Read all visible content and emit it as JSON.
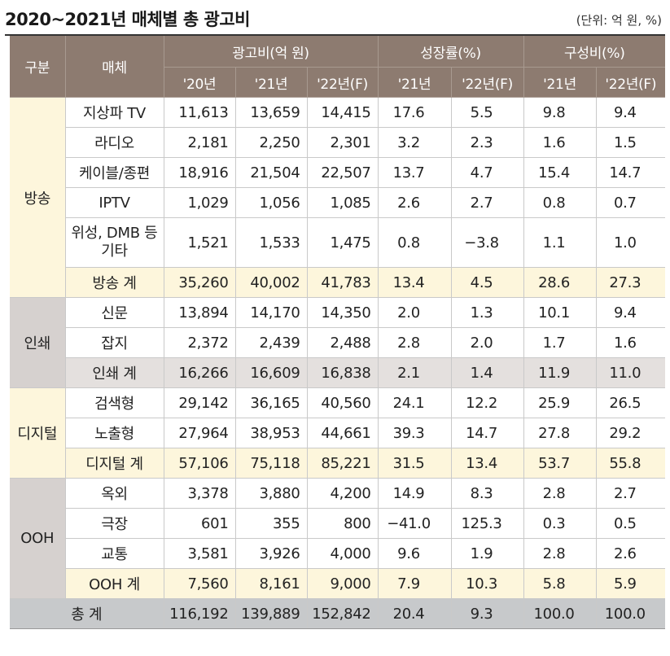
{
  "title": "2020~2021년 매체별 총 광고비",
  "unit": "(단위: 억 원, %)",
  "header": {
    "category": "구분",
    "media": "매체",
    "ad_spend": "광고비(억 원)",
    "growth": "성장률(%)",
    "share": "구성비(%)",
    "y20": "'20년",
    "y21": "'21년",
    "y22f": "'22년(F)",
    "g21": "'21년",
    "g22f": "'22년(F)",
    "s21": "'21년",
    "s22f": "'22년(F)"
  },
  "groups": {
    "broadcast": "방송",
    "print": "인쇄",
    "digital": "디지털",
    "ooh": "OOH"
  },
  "rows": [
    {
      "label": "지상파 TV",
      "v20": "11,613",
      "v21": "13,659",
      "v22": "14,415",
      "g21": "17.6",
      "g22": "5.5",
      "s21": "9.8",
      "s22": "9.4"
    },
    {
      "label": "라디오",
      "v20": "2,181",
      "v21": "2,250",
      "v22": "2,301",
      "g21": "3.2",
      "g22": "2.3",
      "s21": "1.6",
      "s22": "1.5"
    },
    {
      "label": "케이블/종편",
      "v20": "18,916",
      "v21": "21,504",
      "v22": "22,507",
      "g21": "13.7",
      "g22": "4.7",
      "s21": "15.4",
      "s22": "14.7"
    },
    {
      "label": "IPTV",
      "v20": "1,029",
      "v21": "1,056",
      "v22": "1,085",
      "g21": "2.6",
      "g22": "2.7",
      "s21": "0.8",
      "s22": "0.7"
    },
    {
      "label": "위성, DMB 등 기타",
      "v20": "1,521",
      "v21": "1,533",
      "v22": "1,475",
      "g21": "0.8",
      "g22": "−3.8",
      "s21": "1.1",
      "s22": "1.0"
    },
    {
      "label": "방송 계",
      "v20": "35,260",
      "v21": "40,002",
      "v22": "41,783",
      "g21": "13.4",
      "g22": "4.5",
      "s21": "28.6",
      "s22": "27.3"
    },
    {
      "label": "신문",
      "v20": "13,894",
      "v21": "14,170",
      "v22": "14,350",
      "g21": "2.0",
      "g22": "1.3",
      "s21": "10.1",
      "s22": "9.4"
    },
    {
      "label": "잡지",
      "v20": "2,372",
      "v21": "2,439",
      "v22": "2,488",
      "g21": "2.8",
      "g22": "2.0",
      "s21": "1.7",
      "s22": "1.6"
    },
    {
      "label": "인쇄 계",
      "v20": "16,266",
      "v21": "16,609",
      "v22": "16,838",
      "g21": "2.1",
      "g22": "1.4",
      "s21": "11.9",
      "s22": "11.0"
    },
    {
      "label": "검색형",
      "v20": "29,142",
      "v21": "36,165",
      "v22": "40,560",
      "g21": "24.1",
      "g22": "12.2",
      "s21": "25.9",
      "s22": "26.5"
    },
    {
      "label": "노출형",
      "v20": "27,964",
      "v21": "38,953",
      "v22": "44,661",
      "g21": "39.3",
      "g22": "14.7",
      "s21": "27.8",
      "s22": "29.2"
    },
    {
      "label": "디지털 계",
      "v20": "57,106",
      "v21": "75,118",
      "v22": "85,221",
      "g21": "31.5",
      "g22": "13.4",
      "s21": "53.7",
      "s22": "55.8"
    },
    {
      "label": "옥외",
      "v20": "3,378",
      "v21": "3,880",
      "v22": "4,200",
      "g21": "14.9",
      "g22": "8.3",
      "s21": "2.8",
      "s22": "2.7"
    },
    {
      "label": "극장",
      "v20": "601",
      "v21": "355",
      "v22": "800",
      "g21": "−41.0",
      "g22": "125.3",
      "s21": "0.3",
      "s22": "0.5"
    },
    {
      "label": "교통",
      "v20": "3,581",
      "v21": "3,926",
      "v22": "4,000",
      "g21": "9.6",
      "g22": "1.9",
      "s21": "2.8",
      "s22": "2.6"
    },
    {
      "label": "OOH 계",
      "v20": "7,560",
      "v21": "8,161",
      "v22": "9,000",
      "g21": "7.9",
      "g22": "10.3",
      "s21": "5.8",
      "s22": "5.9"
    }
  ],
  "total": {
    "label": "총 계",
    "v20": "116,192",
    "v21": "139,889",
    "v22": "152,842",
    "g21": "20.4",
    "g22": "9.3",
    "s21": "100.0",
    "s22": "100.0"
  },
  "colors": {
    "header": "#8d7b70",
    "yellow": "#fdf6dc",
    "gray": "#d6d1cf",
    "total": "#c7c9cb"
  }
}
